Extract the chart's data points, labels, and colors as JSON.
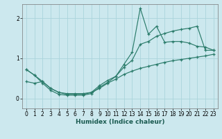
{
  "xlabel": "Humidex (Indice chaleur)",
  "bg_color": "#cce8ee",
  "line_color": "#2a7b6a",
  "grid_color": "#aad4dc",
  "xlim": [
    -0.5,
    23.5
  ],
  "ylim": [
    -0.25,
    2.35
  ],
  "yticks": [
    0,
    1,
    2
  ],
  "xticks": [
    0,
    1,
    2,
    3,
    4,
    5,
    6,
    7,
    8,
    9,
    10,
    11,
    12,
    13,
    14,
    15,
    16,
    17,
    18,
    19,
    20,
    21,
    22,
    23
  ],
  "line1_x": [
    0,
    1,
    2,
    3,
    4,
    5,
    6,
    7,
    8,
    9,
    10,
    11,
    12,
    13,
    14,
    15,
    16,
    17,
    18,
    19,
    20,
    21,
    22,
    23
  ],
  "line1_y": [
    0.72,
    0.58,
    0.42,
    0.25,
    0.15,
    0.12,
    0.12,
    0.12,
    0.15,
    0.32,
    0.45,
    0.55,
    0.85,
    1.15,
    2.25,
    1.6,
    1.8,
    1.4,
    1.42,
    1.42,
    1.38,
    1.3,
    1.28,
    1.2
  ],
  "line2_x": [
    0,
    1,
    2,
    3,
    4,
    5,
    6,
    7,
    8,
    9,
    10,
    11,
    12,
    13,
    14,
    15,
    16,
    17,
    18,
    19,
    20,
    21,
    22,
    23
  ],
  "line2_y": [
    0.72,
    0.58,
    0.38,
    0.2,
    0.1,
    0.08,
    0.08,
    0.08,
    0.12,
    0.28,
    0.4,
    0.55,
    0.78,
    0.95,
    1.35,
    1.42,
    1.55,
    1.62,
    1.68,
    1.72,
    1.75,
    1.8,
    1.2,
    1.2
  ],
  "line3_x": [
    0,
    1,
    2,
    3,
    4,
    5,
    6,
    7,
    8,
    9,
    10,
    11,
    12,
    13,
    14,
    15,
    16,
    17,
    18,
    19,
    20,
    21,
    22,
    23
  ],
  "line3_y": [
    0.42,
    0.38,
    0.42,
    0.25,
    0.15,
    0.1,
    0.1,
    0.1,
    0.15,
    0.25,
    0.38,
    0.48,
    0.6,
    0.68,
    0.75,
    0.8,
    0.85,
    0.9,
    0.94,
    0.97,
    1.0,
    1.03,
    1.06,
    1.1
  ]
}
